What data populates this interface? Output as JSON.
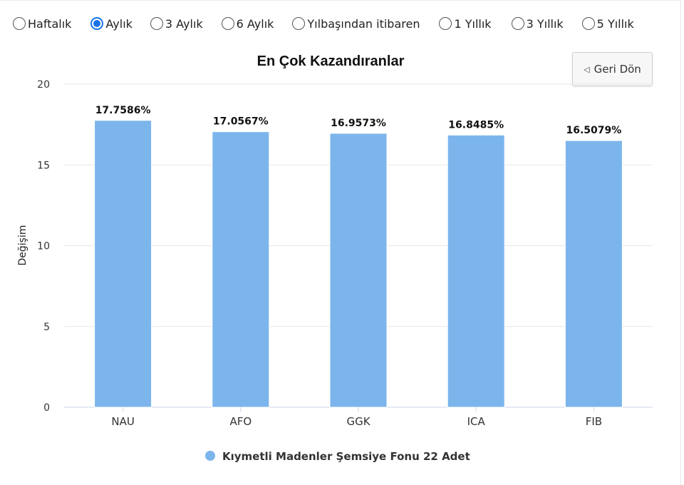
{
  "period_options": [
    {
      "label": "Haftalık",
      "selected": false
    },
    {
      "label": "Aylık",
      "selected": true
    },
    {
      "label": "3 Aylık",
      "selected": false
    },
    {
      "label": "6 Aylık",
      "selected": false
    },
    {
      "label": "Yılbaşından itibaren",
      "selected": false
    },
    {
      "label": "1 Yıllık",
      "selected": false
    },
    {
      "label": "3 Yıllık",
      "selected": false
    },
    {
      "label": "5 Yıllık",
      "selected": false
    }
  ],
  "back_button": {
    "label": "Geri Dön",
    "icon": "back-triangle-icon"
  },
  "colors": {
    "bar": "#7cb5ec",
    "accent": "#1a73e8",
    "grid": "#e6e6e6",
    "axis": "#ccd6eb"
  },
  "chart_data": {
    "type": "bar",
    "title": "En Çok Kazandıranlar",
    "xlabel": "",
    "ylabel": "Değişim",
    "categories": [
      "NAU",
      "AFO",
      "GGK",
      "ICA",
      "FIB"
    ],
    "series": [
      {
        "name": "Kıymetli Madenler Şemsiye Fonu 22 Adet",
        "values": [
          17.7586,
          17.0567,
          16.9573,
          16.8485,
          16.5079
        ]
      }
    ],
    "data_labels": [
      "17.7586%",
      "17.0567%",
      "16.9573%",
      "16.8485%",
      "16.5079%"
    ],
    "ylim": [
      0,
      20
    ],
    "yticks": [
      0,
      5,
      10,
      15,
      20
    ],
    "grid": true,
    "legend_position": "bottom-center"
  }
}
